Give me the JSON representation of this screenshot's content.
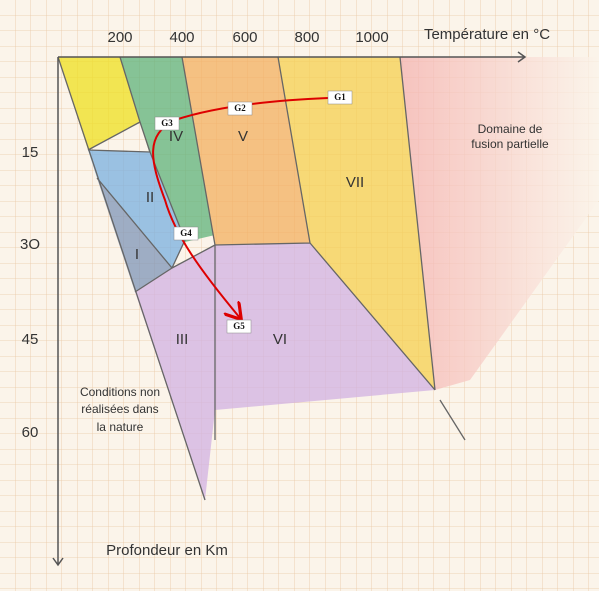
{
  "x_axis": {
    "title": "Température en °C",
    "ticks": [
      "200",
      "400",
      "600",
      "800",
      "1000"
    ]
  },
  "y_axis": {
    "title": "Profondeur en Km",
    "ticks": [
      "15",
      "3O",
      "45",
      "60"
    ]
  },
  "regions": [
    "I",
    "II",
    "III",
    "IV",
    "V",
    "VI",
    "VII"
  ],
  "notes": {
    "fusion": [
      "Domaine de",
      "fusion partielle"
    ],
    "non_realisees": [
      "Conditions non",
      "réalisées dans",
      "la nature"
    ]
  },
  "path_points": [
    "G1",
    "G2",
    "G3",
    "G4",
    "G5"
  ]
}
